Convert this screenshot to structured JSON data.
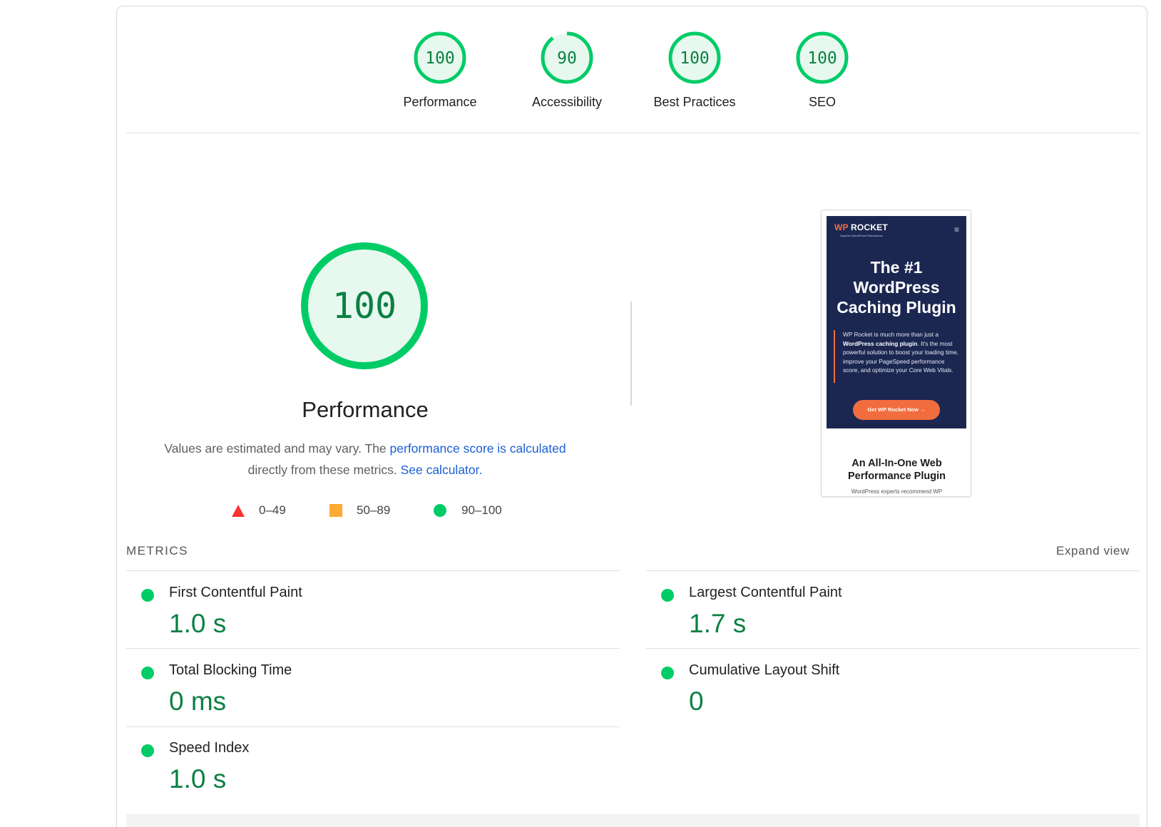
{
  "categories": [
    {
      "score": "100",
      "label": "Performance",
      "fraction": 1.0
    },
    {
      "score": "90",
      "label": "Accessibility",
      "fraction": 0.9
    },
    {
      "score": "100",
      "label": "Best Practices",
      "fraction": 1.0
    },
    {
      "score": "100",
      "label": "SEO",
      "fraction": 1.0
    }
  ],
  "performance": {
    "score": "100",
    "title": "Performance",
    "desc_prefix": "Values are estimated and may vary. The ",
    "desc_link1": "performance score is calculated",
    "desc_mid": "directly from these metrics. ",
    "desc_link2": "See calculator."
  },
  "legend": {
    "fail": "0–49",
    "average": "50–89",
    "pass": "90–100"
  },
  "thumbnail": {
    "logo_wp": "WP",
    "logo_rocket": " ROCKET",
    "tagline": "Superior WordPress Performance",
    "menu_icon": "≡",
    "title_line1": "The #1",
    "title_line2": "WordPress",
    "title_line3": "Caching Plugin",
    "text_a": "WP Rocket is much more than just a ",
    "text_b": "WordPress caching plugin",
    "text_c": ". It's the most powerful solution to boost your loading time, improve your PageSpeed performance score, and optimize your Core Web Vitals.",
    "button": "Get WP Rocket Now  →",
    "subtitle_line1": "An All-In-One Web",
    "subtitle_line2": "Performance Plugin",
    "footer": "WordPress experts recommend WP"
  },
  "metrics": {
    "header": "METRICS",
    "expand": "Expand view",
    "items": [
      {
        "label": "First Contentful Paint",
        "value": "1.0 s"
      },
      {
        "label": "Largest Contentful Paint",
        "value": "1.7 s"
      },
      {
        "label": "Total Blocking Time",
        "value": "0 ms"
      },
      {
        "label": "Cumulative Layout Shift",
        "value": "0"
      },
      {
        "label": "Speed Index",
        "value": "1.0 s"
      }
    ]
  },
  "colors": {
    "pass": "#00cc66",
    "pass_text": "#0b8043",
    "pass_fill": "#e7f8ef",
    "average": "#ffaa33",
    "fail": "#ff3333",
    "link": "#1a5fd6"
  }
}
